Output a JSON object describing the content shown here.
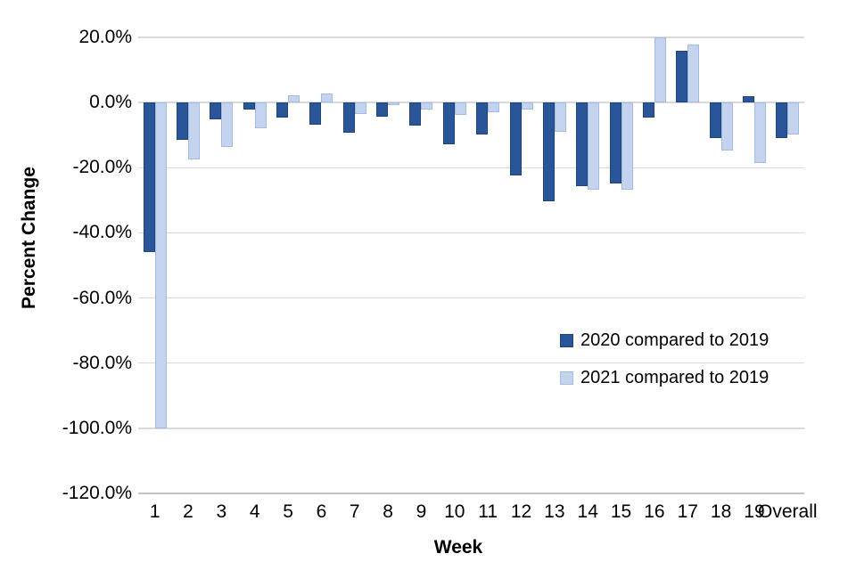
{
  "chart_data": {
    "type": "bar",
    "title": "",
    "xlabel": "Week",
    "ylabel": "Percent Change",
    "categories": [
      "1",
      "2",
      "3",
      "4",
      "5",
      "6",
      "7",
      "8",
      "9",
      "10",
      "11",
      "12",
      "13",
      "14",
      "15",
      "16",
      "17",
      "18",
      "19",
      "Overall"
    ],
    "series": [
      {
        "name": "2020 compared to 2019",
        "color": "#2a5699",
        "border_color": "#1d4380",
        "values": [
          -45.8,
          -11.4,
          -5.2,
          -2.2,
          -4.6,
          -6.9,
          -9.3,
          -4.4,
          -7.1,
          -12.8,
          -9.8,
          -22.3,
          -30.2,
          -25.8,
          -24.8,
          -4.5,
          16.0,
          -11.0,
          2.0,
          -10.9
        ]
      },
      {
        "name": "2021 compared to 2019",
        "color": "#c4d4ee",
        "border_color": "#a3bbe2",
        "values": [
          -100.0,
          -17.5,
          -13.5,
          -7.9,
          2.3,
          2.7,
          -3.6,
          -0.8,
          -2.1,
          -3.7,
          -3.0,
          -2.1,
          -9.1,
          -26.8,
          -26.8,
          20.0,
          17.7,
          -14.8,
          -18.5,
          -9.8
        ]
      }
    ],
    "ylim": [
      -120,
      20
    ],
    "y_ticks": [
      "20.0%",
      "0.0%",
      "-20.0%",
      "-40.0%",
      "-60.0%",
      "-80.0%",
      "-100.0%",
      "-120.0%"
    ],
    "grid": "horizontal",
    "legend_position": "center-right",
    "gridline_color": "#d9d9d9",
    "background_color": "#ffffff"
  }
}
